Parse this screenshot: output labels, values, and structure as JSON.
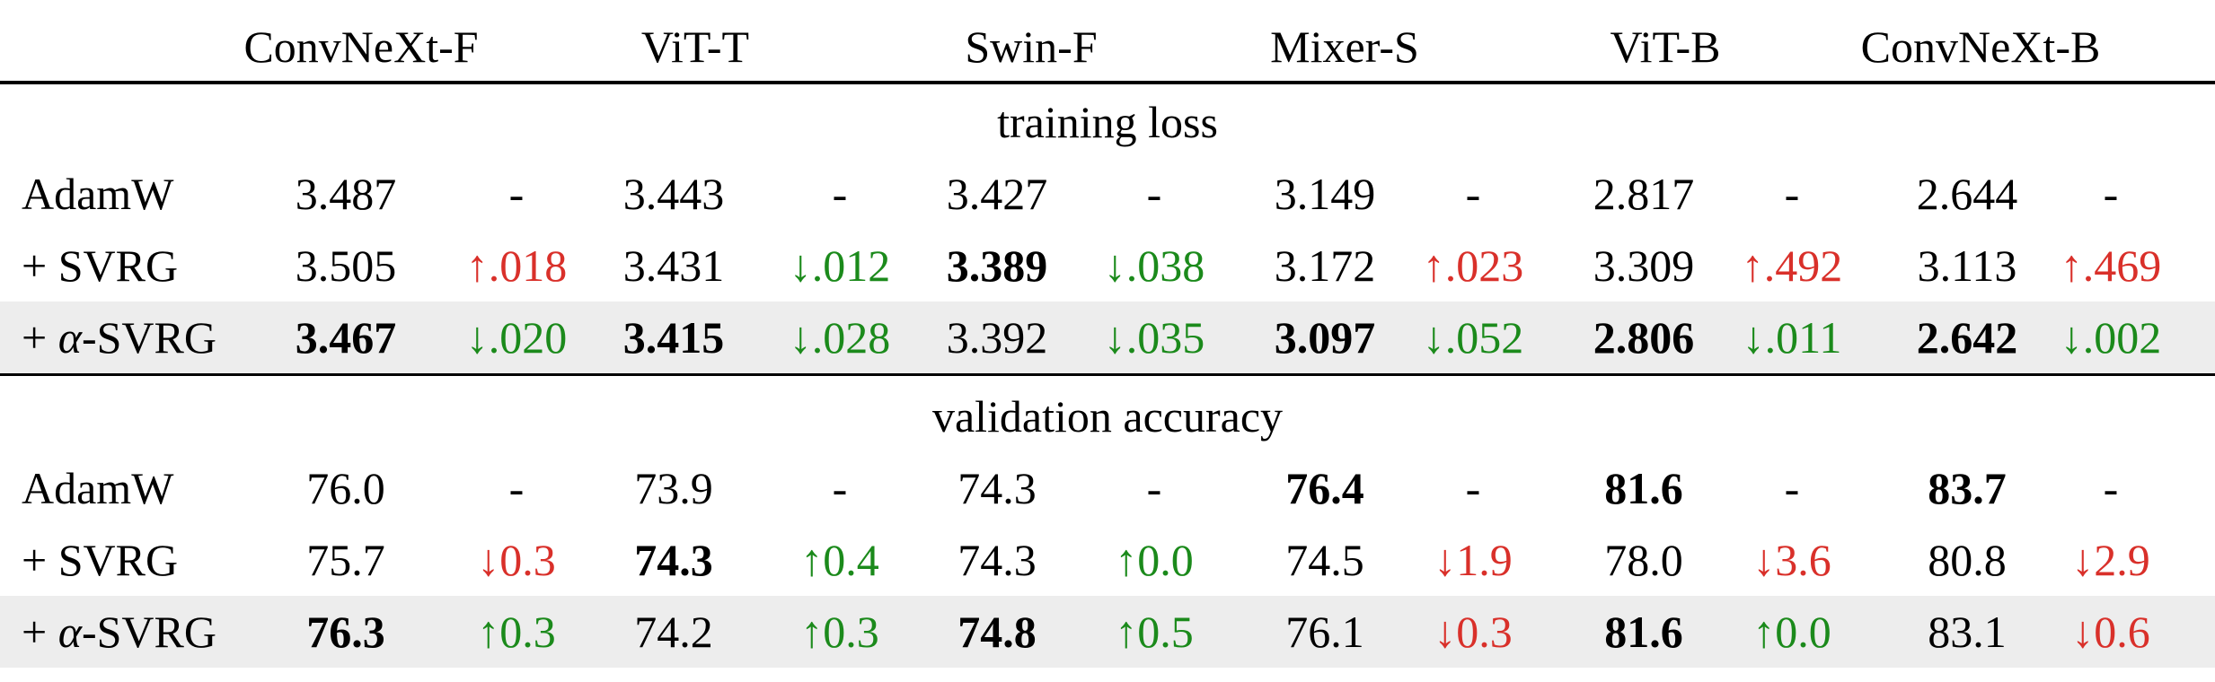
{
  "columns": [
    "ConvNeXt-F",
    "ViT-T",
    "Swin-F",
    "Mixer-S",
    "ViT-B",
    "ConvNeXt-B"
  ],
  "sections": [
    {
      "title": "training loss",
      "rows": [
        {
          "label": "AdamW",
          "values": [
            "3.487",
            "3.443",
            "3.427",
            "3.149",
            "2.817",
            "2.644"
          ],
          "deltas": [
            {
              "t": "-",
              "k": "none"
            },
            {
              "t": "-",
              "k": "none"
            },
            {
              "t": "-",
              "k": "none"
            },
            {
              "t": "-",
              "k": "none"
            },
            {
              "t": "-",
              "k": "none"
            },
            {
              "t": "-",
              "k": "none"
            }
          ],
          "bold": [
            false,
            false,
            false,
            false,
            false,
            false
          ],
          "shaded": false
        },
        {
          "label": "+ SVRG",
          "values": [
            "3.505",
            "3.431",
            "3.389",
            "3.172",
            "3.309",
            "3.113"
          ],
          "deltas": [
            {
              "t": "↑.018",
              "k": "bad"
            },
            {
              "t": "↓.012",
              "k": "good"
            },
            {
              "t": "↓.038",
              "k": "good"
            },
            {
              "t": "↑.023",
              "k": "bad"
            },
            {
              "t": "↑.492",
              "k": "bad"
            },
            {
              "t": "↑.469",
              "k": "bad"
            }
          ],
          "bold": [
            false,
            false,
            true,
            false,
            false,
            false
          ],
          "shaded": false
        },
        {
          "label_prefix": "+ ",
          "label_greek": "α",
          "label_suffix": "-SVRG",
          "values": [
            "3.467",
            "3.415",
            "3.392",
            "3.097",
            "2.806",
            "2.642"
          ],
          "deltas": [
            {
              "t": "↓.020",
              "k": "good"
            },
            {
              "t": "↓.028",
              "k": "good"
            },
            {
              "t": "↓.035",
              "k": "good"
            },
            {
              "t": "↓.052",
              "k": "good"
            },
            {
              "t": "↓.011",
              "k": "good"
            },
            {
              "t": "↓.002",
              "k": "good"
            }
          ],
          "bold": [
            true,
            true,
            false,
            true,
            true,
            true
          ],
          "shaded": true
        }
      ]
    },
    {
      "title": "validation accuracy",
      "rows": [
        {
          "label": "AdamW",
          "values": [
            "76.0",
            "73.9",
            "74.3",
            "76.4",
            "81.6",
            "83.7"
          ],
          "deltas": [
            {
              "t": "-",
              "k": "none"
            },
            {
              "t": "-",
              "k": "none"
            },
            {
              "t": "-",
              "k": "none"
            },
            {
              "t": "-",
              "k": "none"
            },
            {
              "t": "-",
              "k": "none"
            },
            {
              "t": "-",
              "k": "none"
            }
          ],
          "bold": [
            false,
            false,
            false,
            true,
            true,
            true
          ],
          "shaded": false
        },
        {
          "label": "+ SVRG",
          "values": [
            "75.7",
            "74.3",
            "74.3",
            "74.5",
            "78.0",
            "80.8"
          ],
          "deltas": [
            {
              "t": "↓0.3",
              "k": "bad"
            },
            {
              "t": "↑0.4",
              "k": "good"
            },
            {
              "t": "↑0.0",
              "k": "good"
            },
            {
              "t": "↓1.9",
              "k": "bad"
            },
            {
              "t": "↓3.6",
              "k": "bad"
            },
            {
              "t": "↓2.9",
              "k": "bad"
            }
          ],
          "bold": [
            false,
            true,
            false,
            false,
            false,
            false
          ],
          "shaded": false
        },
        {
          "label_prefix": "+ ",
          "label_greek": "α",
          "label_suffix": "-SVRG",
          "values": [
            "76.3",
            "74.2",
            "74.8",
            "76.1",
            "81.6",
            "83.1"
          ],
          "deltas": [
            {
              "t": "↑0.3",
              "k": "good"
            },
            {
              "t": "↑0.3",
              "k": "good"
            },
            {
              "t": "↑0.5",
              "k": "good"
            },
            {
              "t": "↓0.3",
              "k": "bad"
            },
            {
              "t": "↑0.0",
              "k": "good"
            },
            {
              "t": "↓0.6",
              "k": "bad"
            }
          ],
          "bold": [
            true,
            false,
            true,
            false,
            true,
            false
          ],
          "shaded": true
        }
      ]
    }
  ],
  "colors": {
    "good": "#1b8a1b",
    "bad": "#d9302a",
    "shade": "#ededed"
  }
}
